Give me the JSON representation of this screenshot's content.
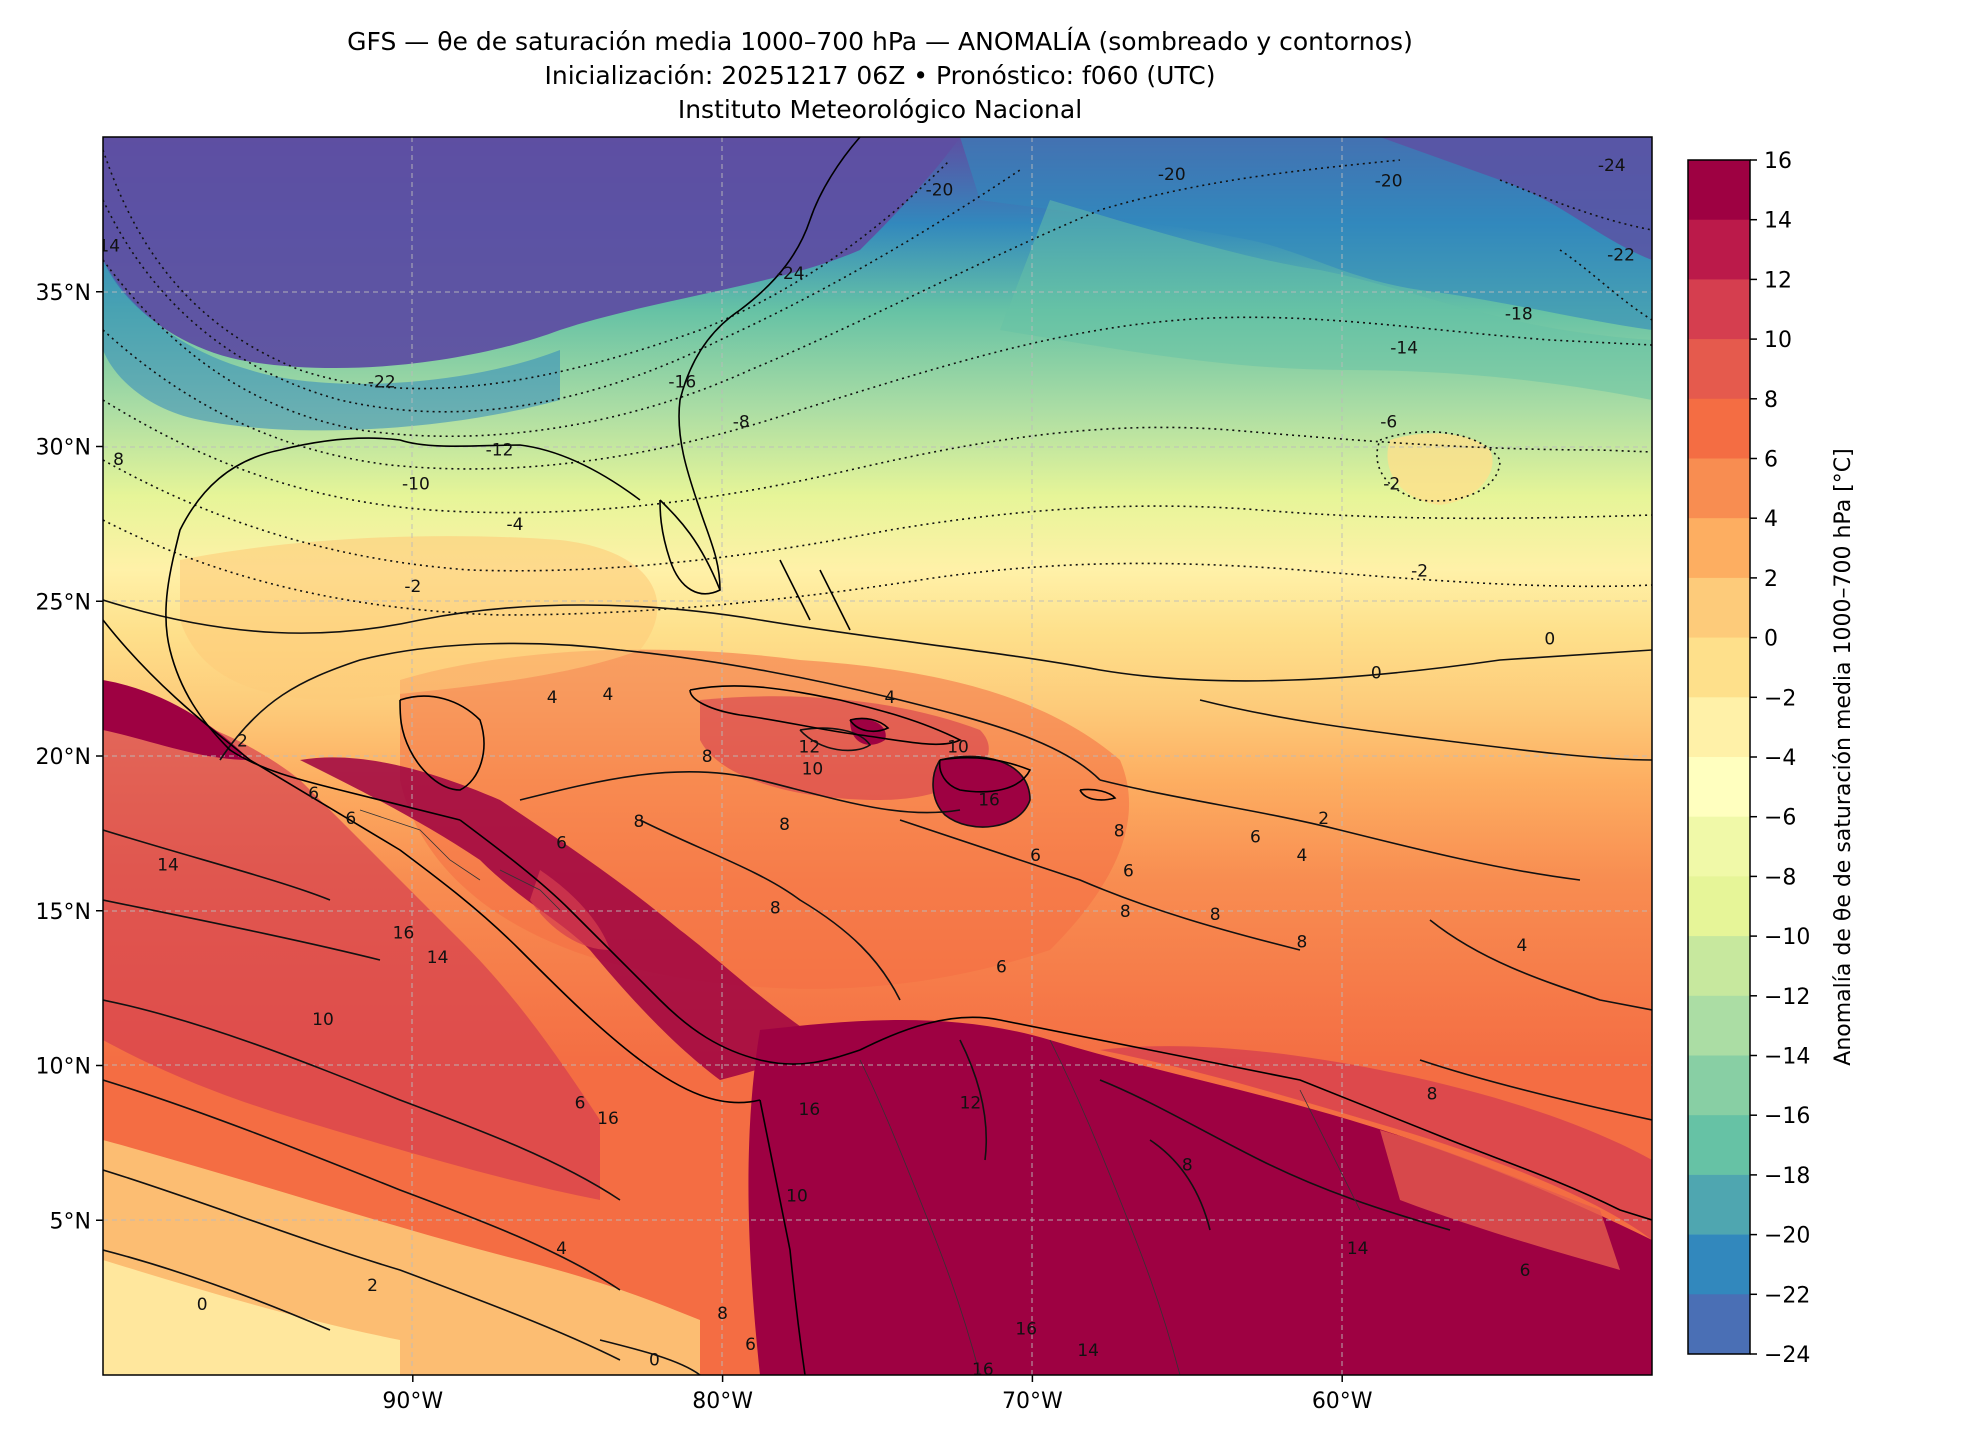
{
  "title": {
    "line1": "GFS — θe de saturación media 1000–700 hPa — ANOMALÍA (sombreado y contornos)",
    "line2": "Inicialización: 20251217 06Z   •   Pronóstico: f060 (UTC)",
    "line3": "Instituto Meteorológico Nacional"
  },
  "map": {
    "lon_range": [
      -100,
      -50
    ],
    "lat_range": [
      0,
      40
    ],
    "lat_ticks": [
      {
        "value": 35,
        "label": "35°N"
      },
      {
        "value": 30,
        "label": "30°N"
      },
      {
        "value": 25,
        "label": "25°N"
      },
      {
        "value": 20,
        "label": "20°N"
      },
      {
        "value": 15,
        "label": "15°N"
      },
      {
        "value": 10,
        "label": "10°N"
      },
      {
        "value": 5,
        "label": "5°N"
      }
    ],
    "lon_ticks": [
      {
        "value": -90,
        "label": "90°W"
      },
      {
        "value": -80,
        "label": "80°W"
      },
      {
        "value": -70,
        "label": "70°W"
      },
      {
        "value": -60,
        "label": "60°W"
      }
    ],
    "contour_labels": [
      {
        "text": "-20",
        "lon": -73,
        "lat": 38.3
      },
      {
        "text": "-20",
        "lon": -65.5,
        "lat": 38.8
      },
      {
        "text": "-20",
        "lon": -58.5,
        "lat": 38.6
      },
      {
        "text": "-24",
        "lon": -51.3,
        "lat": 39.1
      },
      {
        "text": "-22",
        "lon": -51.0,
        "lat": 36.2
      },
      {
        "text": "-24",
        "lon": -77.8,
        "lat": 35.6
      },
      {
        "text": "-18",
        "lon": -54.3,
        "lat": 34.3
      },
      {
        "text": "-14",
        "lon": -58.0,
        "lat": 33.2
      },
      {
        "text": "-22",
        "lon": -91.0,
        "lat": 32.1
      },
      {
        "text": "-16",
        "lon": -81.3,
        "lat": 32.1
      },
      {
        "text": "-12",
        "lon": -87.2,
        "lat": 29.9
      },
      {
        "text": "-10",
        "lon": -89.9,
        "lat": 28.8
      },
      {
        "text": "-8",
        "lon": -79.4,
        "lat": 30.8
      },
      {
        "text": "-6",
        "lon": -58.5,
        "lat": 30.8
      },
      {
        "text": "-4",
        "lon": -86.7,
        "lat": 27.5
      },
      {
        "text": "-2",
        "lon": -90.0,
        "lat": 25.5
      },
      {
        "text": "-2",
        "lon": -58.4,
        "lat": 28.8
      },
      {
        "text": "-2",
        "lon": -57.5,
        "lat": 26.0
      },
      {
        "text": "0",
        "lon": -53.3,
        "lat": 23.8
      },
      {
        "text": "0",
        "lon": -58.9,
        "lat": 22.7
      },
      {
        "text": "4",
        "lon": -74.6,
        "lat": 21.9
      },
      {
        "text": "4",
        "lon": -85.5,
        "lat": 21.9
      },
      {
        "text": "4",
        "lon": -83.7,
        "lat": 22.0
      },
      {
        "text": "2",
        "lon": -95.5,
        "lat": 20.5
      },
      {
        "text": "6",
        "lon": -93.2,
        "lat": 18.8
      },
      {
        "text": "6",
        "lon": -92.0,
        "lat": 18.0
      },
      {
        "text": "6",
        "lon": -85.2,
        "lat": 17.2
      },
      {
        "text": "8",
        "lon": -80.5,
        "lat": 20.0
      },
      {
        "text": "8",
        "lon": -82.7,
        "lat": 17.9
      },
      {
        "text": "12",
        "lon": -77.2,
        "lat": 20.3
      },
      {
        "text": "10",
        "lon": -77.1,
        "lat": 19.6
      },
      {
        "text": "10",
        "lon": -72.4,
        "lat": 20.3
      },
      {
        "text": "16",
        "lon": -71.4,
        "lat": 18.6
      },
      {
        "text": "8",
        "lon": -78.0,
        "lat": 17.8
      },
      {
        "text": "8",
        "lon": -67.2,
        "lat": 17.6
      },
      {
        "text": "6",
        "lon": -69.9,
        "lat": 16.8
      },
      {
        "text": "6",
        "lon": -66.9,
        "lat": 16.3
      },
      {
        "text": "8",
        "lon": -67.0,
        "lat": 15.0
      },
      {
        "text": "6",
        "lon": -71.0,
        "lat": 13.2
      },
      {
        "text": "8",
        "lon": -78.3,
        "lat": 15.1
      },
      {
        "text": "8",
        "lon": -64.1,
        "lat": 14.9
      },
      {
        "text": "6",
        "lon": -62.8,
        "lat": 17.4
      },
      {
        "text": "4",
        "lon": -61.3,
        "lat": 16.8
      },
      {
        "text": "2",
        "lon": -60.6,
        "lat": 18.0
      },
      {
        "text": "4",
        "lon": -54.2,
        "lat": 13.9
      },
      {
        "text": "8",
        "lon": -61.3,
        "lat": 14.0
      },
      {
        "text": "8",
        "lon": -57.1,
        "lat": 9.1
      },
      {
        "text": "14",
        "lon": -97.9,
        "lat": 16.5
      },
      {
        "text": "16",
        "lon": -90.3,
        "lat": 14.3
      },
      {
        "text": "14",
        "lon": -89.2,
        "lat": 13.5
      },
      {
        "text": "10",
        "lon": -92.9,
        "lat": 11.5
      },
      {
        "text": "12",
        "lon": -72.0,
        "lat": 8.8
      },
      {
        "text": "16",
        "lon": -77.2,
        "lat": 8.6
      },
      {
        "text": "16",
        "lon": -83.7,
        "lat": 8.3
      },
      {
        "text": "6",
        "lon": -84.6,
        "lat": 8.8
      },
      {
        "text": "4",
        "lon": -85.2,
        "lat": 4.1
      },
      {
        "text": "2",
        "lon": -91.3,
        "lat": 2.9
      },
      {
        "text": "0",
        "lon": -96.8,
        "lat": 2.3
      },
      {
        "text": "0",
        "lon": -82.2,
        "lat": 0.5
      },
      {
        "text": "10",
        "lon": -77.6,
        "lat": 5.8
      },
      {
        "text": "16",
        "lon": -70.2,
        "lat": 1.5
      },
      {
        "text": "16",
        "lon": -71.6,
        "lat": 0.2
      },
      {
        "text": "14",
        "lon": -68.2,
        "lat": 0.8
      },
      {
        "text": "14",
        "lon": -59.5,
        "lat": 4.1
      },
      {
        "text": "6",
        "lon": -54.1,
        "lat": 3.4
      },
      {
        "text": "8",
        "lon": -65.0,
        "lat": 6.8
      },
      {
        "text": "6",
        "lon": -79.1,
        "lat": 1.0
      },
      {
        "text": "8",
        "lon": -80.0,
        "lat": 2.0
      },
      {
        "text": "14",
        "lon": -99.8,
        "lat": 36.5
      },
      {
        "text": "8",
        "lon": -99.5,
        "lat": 29.6
      }
    ]
  },
  "colorbar": {
    "label": "Anomalía de θe de saturación media 1000–700 hPa [°C]",
    "ticks": [
      "16",
      "14",
      "12",
      "10",
      "8",
      "6",
      "4",
      "2",
      "0",
      "−2",
      "−4",
      "−6",
      "−8",
      "−10",
      "−12",
      "−14",
      "−16",
      "−18",
      "−20",
      "−22",
      "−24"
    ],
    "colors": [
      "#9e0142",
      "#bb1a4a",
      "#d53e4f",
      "#e55a4d",
      "#f46d43",
      "#f88d51",
      "#fdae61",
      "#fdcb7a",
      "#fee08b",
      "#fff1a8",
      "#ffffbf",
      "#f0f9a8",
      "#e6f598",
      "#c7e89e",
      "#abdda4",
      "#88cfa4",
      "#66c2a5",
      "#4fa6b0",
      "#3288bd",
      "#4a6fb5",
      "#5e4fa2"
    ]
  }
}
